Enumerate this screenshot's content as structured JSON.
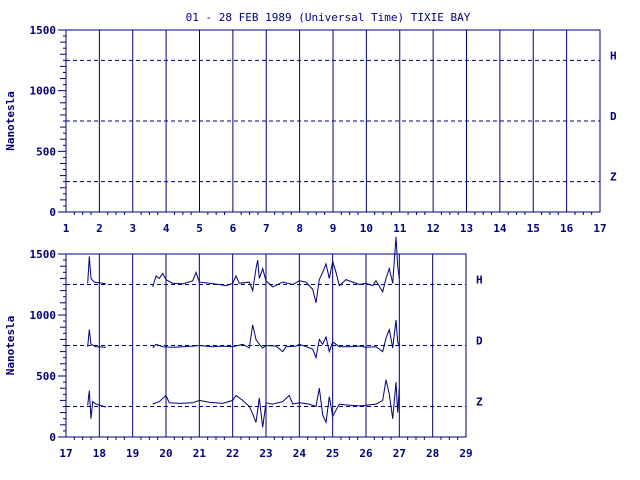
{
  "chart_data": [
    {
      "type": "line",
      "title": "01 - 28 FEB 1989 (Universal Time) TIXIE BAY",
      "xlabel": "",
      "ylabel": "Nanotesla",
      "xlim": [
        1,
        17
      ],
      "ylim": [
        0,
        1500
      ],
      "x_ticks": [
        1,
        2,
        3,
        4,
        5,
        6,
        7,
        8,
        9,
        10,
        11,
        12,
        13,
        14,
        15,
        16,
        17
      ],
      "y_ticks": [
        0,
        500,
        1000,
        1500
      ],
      "grid": "vertical at each day",
      "baselines": [
        {
          "name": "H",
          "value": 1250
        },
        {
          "name": "D",
          "value": 750
        },
        {
          "name": "Z",
          "value": 250
        }
      ],
      "series": []
    },
    {
      "type": "line",
      "title": "",
      "xlabel": "",
      "ylabel": "Nanotesla",
      "xlim": [
        17,
        29
      ],
      "ylim": [
        0,
        1500
      ],
      "x_ticks": [
        17,
        18,
        19,
        20,
        21,
        22,
        23,
        24,
        25,
        26,
        27,
        28,
        29
      ],
      "y_ticks": [
        0,
        500,
        1000,
        1500
      ],
      "grid": "vertical at each day",
      "baselines": [
        {
          "name": "H",
          "value": 1250
        },
        {
          "name": "D",
          "value": 750
        },
        {
          "name": "Z",
          "value": 250
        }
      ],
      "series": [
        {
          "name": "H",
          "points": [
            [
              17.65,
              1260
            ],
            [
              17.7,
              1480
            ],
            [
              17.75,
              1300
            ],
            [
              17.85,
              1270
            ],
            [
              18.0,
              1265
            ],
            [
              18.2,
              1255
            ],
            [
              19.6,
              1230
            ],
            [
              19.7,
              1320
            ],
            [
              19.8,
              1300
            ],
            [
              19.9,
              1340
            ],
            [
              20.0,
              1290
            ],
            [
              20.2,
              1260
            ],
            [
              20.5,
              1255
            ],
            [
              20.8,
              1280
            ],
            [
              20.9,
              1350
            ],
            [
              21.0,
              1270
            ],
            [
              21.3,
              1260
            ],
            [
              21.6,
              1250
            ],
            [
              21.8,
              1240
            ],
            [
              22.0,
              1260
            ],
            [
              22.1,
              1320
            ],
            [
              22.2,
              1260
            ],
            [
              22.5,
              1270
            ],
            [
              22.6,
              1200
            ],
            [
              22.7,
              1380
            ],
            [
              22.75,
              1450
            ],
            [
              22.8,
              1300
            ],
            [
              22.9,
              1380
            ],
            [
              23.0,
              1280
            ],
            [
              23.2,
              1230
            ],
            [
              23.5,
              1270
            ],
            [
              23.8,
              1250
            ],
            [
              24.0,
              1280
            ],
            [
              24.2,
              1270
            ],
            [
              24.4,
              1210
            ],
            [
              24.5,
              1100
            ],
            [
              24.6,
              1290
            ],
            [
              24.7,
              1350
            ],
            [
              24.8,
              1420
            ],
            [
              24.9,
              1300
            ],
            [
              25.0,
              1440
            ],
            [
              25.1,
              1350
            ],
            [
              25.2,
              1240
            ],
            [
              25.4,
              1290
            ],
            [
              25.6,
              1270
            ],
            [
              25.8,
              1250
            ],
            [
              26.0,
              1260
            ],
            [
              26.2,
              1240
            ],
            [
              26.3,
              1280
            ],
            [
              26.5,
              1190
            ],
            [
              26.6,
              1300
            ],
            [
              26.7,
              1380
            ],
            [
              26.8,
              1260
            ],
            [
              26.9,
              1640
            ],
            [
              26.95,
              1400
            ],
            [
              27.0,
              1300
            ]
          ]
        },
        {
          "name": "D",
          "points": [
            [
              17.65,
              740
            ],
            [
              17.7,
              880
            ],
            [
              17.75,
              760
            ],
            [
              17.9,
              740
            ],
            [
              18.2,
              735
            ],
            [
              19.6,
              730
            ],
            [
              19.7,
              760
            ],
            [
              19.9,
              740
            ],
            [
              20.2,
              735
            ],
            [
              20.5,
              740
            ],
            [
              20.8,
              745
            ],
            [
              21.0,
              750
            ],
            [
              21.4,
              740
            ],
            [
              21.7,
              745
            ],
            [
              22.0,
              740
            ],
            [
              22.3,
              760
            ],
            [
              22.5,
              730
            ],
            [
              22.6,
              920
            ],
            [
              22.7,
              800
            ],
            [
              22.8,
              760
            ],
            [
              22.9,
              730
            ],
            [
              23.0,
              750
            ],
            [
              23.3,
              745
            ],
            [
              23.5,
              700
            ],
            [
              23.6,
              740
            ],
            [
              23.9,
              745
            ],
            [
              24.0,
              760
            ],
            [
              24.2,
              740
            ],
            [
              24.4,
              720
            ],
            [
              24.5,
              650
            ],
            [
              24.6,
              800
            ],
            [
              24.7,
              760
            ],
            [
              24.8,
              820
            ],
            [
              24.9,
              700
            ],
            [
              25.0,
              780
            ],
            [
              25.2,
              740
            ],
            [
              25.5,
              740
            ],
            [
              25.8,
              745
            ],
            [
              26.0,
              735
            ],
            [
              26.3,
              740
            ],
            [
              26.5,
              700
            ],
            [
              26.6,
              810
            ],
            [
              26.7,
              880
            ],
            [
              26.8,
              730
            ],
            [
              26.9,
              960
            ],
            [
              26.95,
              780
            ],
            [
              27.0,
              740
            ]
          ]
        },
        {
          "name": "Z",
          "points": [
            [
              17.65,
              260
            ],
            [
              17.7,
              380
            ],
            [
              17.75,
              150
            ],
            [
              17.8,
              290
            ],
            [
              17.9,
              270
            ],
            [
              18.2,
              245
            ],
            [
              19.6,
              270
            ],
            [
              19.8,
              290
            ],
            [
              20.0,
              340
            ],
            [
              20.1,
              280
            ],
            [
              20.4,
              275
            ],
            [
              20.8,
              280
            ],
            [
              21.0,
              300
            ],
            [
              21.3,
              285
            ],
            [
              21.7,
              275
            ],
            [
              22.0,
              300
            ],
            [
              22.1,
              340
            ],
            [
              22.3,
              300
            ],
            [
              22.5,
              250
            ],
            [
              22.6,
              190
            ],
            [
              22.7,
              120
            ],
            [
              22.8,
              320
            ],
            [
              22.9,
              80
            ],
            [
              23.0,
              280
            ],
            [
              23.2,
              270
            ],
            [
              23.5,
              290
            ],
            [
              23.7,
              340
            ],
            [
              23.8,
              270
            ],
            [
              24.0,
              280
            ],
            [
              24.3,
              270
            ],
            [
              24.5,
              250
            ],
            [
              24.6,
              400
            ],
            [
              24.7,
              180
            ],
            [
              24.8,
              120
            ],
            [
              24.9,
              330
            ],
            [
              25.0,
              170
            ],
            [
              25.2,
              270
            ],
            [
              25.5,
              260
            ],
            [
              25.8,
              255
            ],
            [
              26.0,
              260
            ],
            [
              26.3,
              270
            ],
            [
              26.5,
              300
            ],
            [
              26.6,
              470
            ],
            [
              26.7,
              350
            ],
            [
              26.8,
              150
            ],
            [
              26.9,
              450
            ],
            [
              26.95,
              200
            ],
            [
              27.0,
              400
            ]
          ]
        }
      ]
    }
  ]
}
